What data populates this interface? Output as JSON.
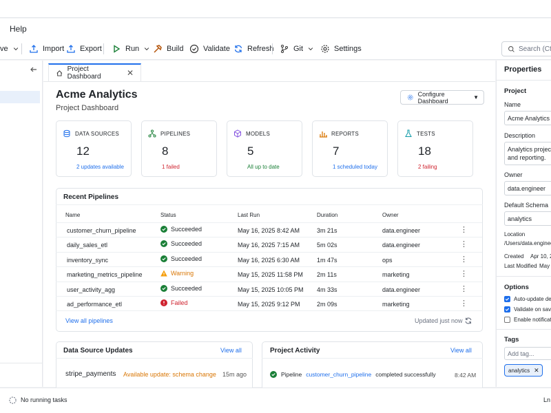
{
  "menu": {
    "help": "Help"
  },
  "toolbar": {
    "save_partial": "ve",
    "import": "Import",
    "export": "Export",
    "run": "Run",
    "build": "Build",
    "validate": "Validate",
    "refresh": "Refresh",
    "git": "Git",
    "settings": "Settings",
    "search_placeholder": "Search (Ctrl+K"
  },
  "tab": {
    "label": "Project Dashboard"
  },
  "header": {
    "title": "Acme Analytics",
    "subtitle": "Project Dashboard",
    "configure": "Configure Dashboard"
  },
  "cards": [
    {
      "label": "DATA SOURCES",
      "value": "12",
      "sub": "2 updates available"
    },
    {
      "label": "PIPELINES",
      "value": "8",
      "sub": "1 failed"
    },
    {
      "label": "MODELS",
      "value": "5",
      "sub": "All up to date"
    },
    {
      "label": "REPORTS",
      "value": "7",
      "sub": "1 scheduled today"
    },
    {
      "label": "TESTS",
      "value": "18",
      "sub": "2 failing"
    }
  ],
  "recent": {
    "title": "Recent Pipelines",
    "columns": [
      "Name",
      "Status",
      "Last Run",
      "Duration",
      "Owner"
    ],
    "rows": [
      {
        "name": "customer_churn_pipeline",
        "status": "Succeeded",
        "last_run": "May 16, 2025 8:42 AM",
        "duration": "3m 21s",
        "owner": "data.engineer"
      },
      {
        "name": "daily_sales_etl",
        "status": "Succeeded",
        "last_run": "May 16, 2025 7:15 AM",
        "duration": "5m 02s",
        "owner": "data.engineer"
      },
      {
        "name": "inventory_sync",
        "status": "Succeeded",
        "last_run": "May 16, 2025 6:30 AM",
        "duration": "1m 47s",
        "owner": "ops"
      },
      {
        "name": "marketing_metrics_pipeline",
        "status": "Warning",
        "last_run": "May 15, 2025 11:58 PM",
        "duration": "2m 11s",
        "owner": "marketing"
      },
      {
        "name": "user_activity_agg",
        "status": "Succeeded",
        "last_run": "May 15, 2025 10:05 PM",
        "duration": "4m 33s",
        "owner": "data.engineer"
      },
      {
        "name": "ad_performance_etl",
        "status": "Failed",
        "last_run": "May 15, 2025 9:12 PM",
        "duration": "2m 09s",
        "owner": "marketing"
      }
    ],
    "view_all": "View all pipelines",
    "updated": "Updated just now"
  },
  "ds_updates": {
    "title": "Data Source Updates",
    "view_all": "View all",
    "item_name": "stripe_payments",
    "item_status": "Available update: schema change",
    "item_time": "15m ago"
  },
  "activity": {
    "title": "Project Activity",
    "view_all": "View all",
    "prefix": "Pipeline",
    "link": "customer_churn_pipeline",
    "suffix": "completed successfully",
    "time": "8:42 AM"
  },
  "properties": {
    "title": "Properties",
    "section": "Project",
    "name_label": "Name",
    "name_value": "Acme Analytics",
    "desc_label": "Description",
    "desc_line1": "Analytics project",
    "desc_line2": "and reporting.",
    "owner_label": "Owner",
    "owner_value": "data.engineer",
    "schema_label": "Default Schema",
    "schema_value": "analytics",
    "location_label": "Location",
    "location_value": "/Users/data.engineer",
    "created_label": "Created",
    "created_value": "Apr 10, 2",
    "modified_label": "Last Modified",
    "modified_value": "May",
    "options_title": "Options",
    "opt1": "Auto-update de",
    "opt2": "Validate on save",
    "opt3": "Enable notificati",
    "tags_title": "Tags",
    "tag_placeholder": "Add tag...",
    "tag_chip": "analytics"
  },
  "status": {
    "text": "No running tasks",
    "right": "Ln"
  }
}
